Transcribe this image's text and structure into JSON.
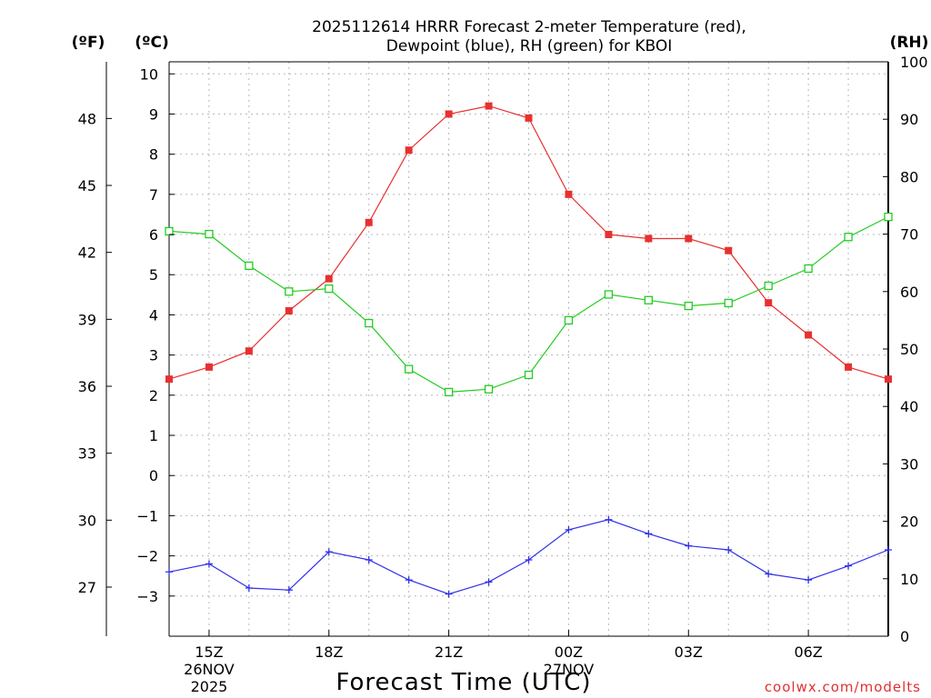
{
  "chart_data": {
    "type": "line",
    "title_line1": "2025112614 HRRR Forecast 2-meter Temperature (red),",
    "title_line2": "Dewpoint (blue), RH (green) for KBOI",
    "xlabel": "Forecast Time (UTC)",
    "credit": "coolwx.com/modelts",
    "units": {
      "fahrenheit": "(ºF)",
      "celsius": "(ºC)",
      "rh": "(RH)"
    },
    "hours_utc": [
      14,
      15,
      16,
      17,
      18,
      19,
      20,
      21,
      22,
      23,
      24,
      25,
      26,
      27,
      28,
      29,
      30,
      31,
      32
    ],
    "x_ticks": [
      {
        "hour": 15,
        "label": "15Z",
        "date": "26NOV",
        "year": "2025"
      },
      {
        "hour": 18,
        "label": "18Z"
      },
      {
        "hour": 21,
        "label": "21Z"
      },
      {
        "hour": 24,
        "label": "00Z",
        "date": "27NOV"
      },
      {
        "hour": 27,
        "label": "03Z"
      },
      {
        "hour": 30,
        "label": "06Z"
      }
    ],
    "celsius_axis": {
      "min": -4,
      "max": 10.3,
      "ticks": [
        "10",
        "9",
        "8",
        "7",
        "6",
        "5",
        "4",
        "3",
        "2",
        "1",
        "0",
        "−1",
        "−2",
        "−3"
      ],
      "tick_values": [
        10,
        9,
        8,
        7,
        6,
        5,
        4,
        3,
        2,
        1,
        0,
        -1,
        -2,
        -3
      ]
    },
    "fahrenheit_axis": {
      "ticks": [
        "48",
        "45",
        "42",
        "39",
        "36",
        "33",
        "30",
        "27"
      ],
      "tick_values": [
        48,
        45,
        42,
        39,
        36,
        33,
        30,
        27
      ]
    },
    "rh_axis": {
      "min": 0,
      "max": 100,
      "ticks": [
        "100",
        "90",
        "80",
        "70",
        "60",
        "50",
        "40",
        "30",
        "20",
        "10",
        "0"
      ],
      "tick_values": [
        100,
        90,
        80,
        70,
        60,
        50,
        40,
        30,
        20,
        10,
        0
      ]
    },
    "series": [
      {
        "name": "Temperature",
        "unit": "C",
        "color": "#e83030",
        "marker": "filled-square",
        "values": [
          2.4,
          2.7,
          3.1,
          4.1,
          4.9,
          6.3,
          8.1,
          9.0,
          9.2,
          8.9,
          7.0,
          6.0,
          5.9,
          5.9,
          5.6,
          4.3,
          3.5,
          2.7,
          2.4
        ]
      },
      {
        "name": "Dewpoint",
        "unit": "C",
        "color": "#3030e8",
        "marker": "plus",
        "values": [
          -2.4,
          -2.2,
          -2.8,
          -2.85,
          -1.9,
          -2.1,
          -2.6,
          -2.95,
          -2.65,
          -2.1,
          -1.35,
          -1.1,
          -1.45,
          -1.75,
          -1.85,
          -2.45,
          -2.6,
          -2.25,
          -1.85
        ]
      },
      {
        "name": "RH",
        "unit": "%",
        "color": "#22cc22",
        "marker": "open-square",
        "values": [
          70.5,
          70.0,
          64.5,
          60.0,
          60.5,
          54.5,
          46.5,
          42.5,
          43.0,
          45.5,
          55.0,
          59.5,
          58.5,
          57.5,
          58.0,
          61.0,
          64.0,
          69.5,
          73.0
        ]
      }
    ]
  }
}
